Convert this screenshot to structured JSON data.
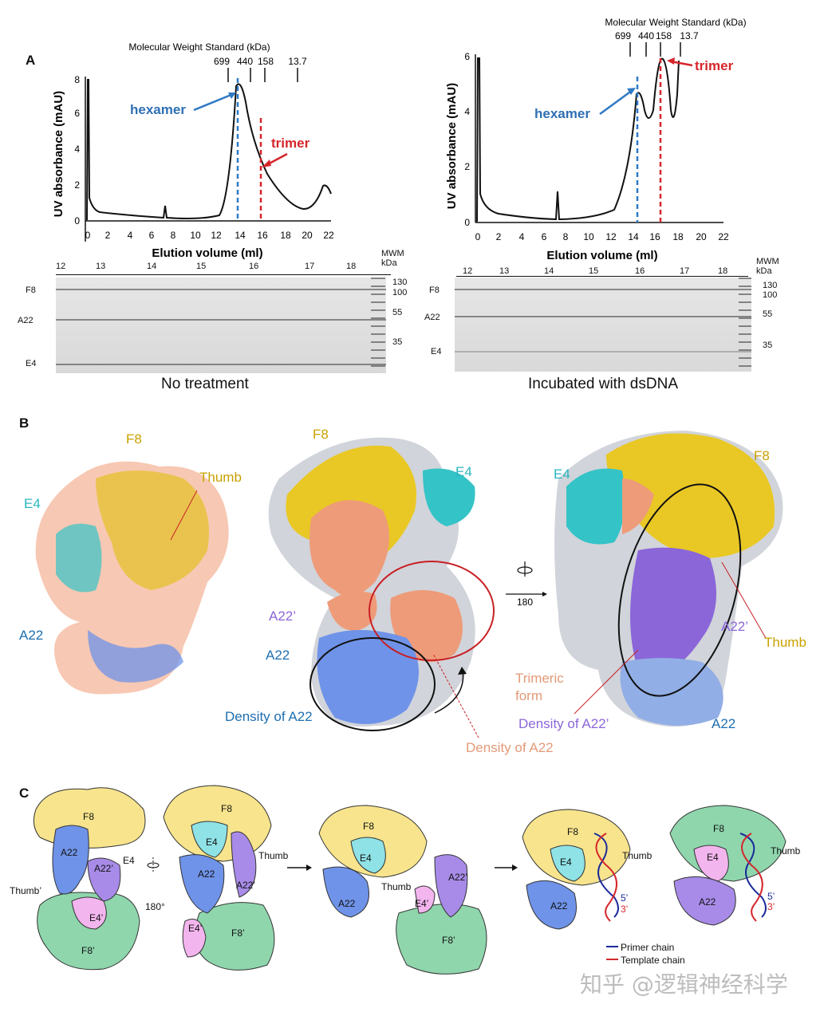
{
  "panelA": {
    "letter": "A",
    "left": {
      "mws_title": "Molecular Weight Standard (kDa)",
      "mws_values": [
        "699",
        "440",
        "158",
        "13.7"
      ],
      "ylabel": "UV absorbance (mAU)",
      "xlabel": "Elution volume (ml)",
      "yticks": [
        "0",
        "2",
        "4",
        "6",
        "8"
      ],
      "xticks": [
        "0",
        "2",
        "4",
        "6",
        "8",
        "10",
        "12",
        "14",
        "16",
        "18",
        "20",
        "22"
      ],
      "hexamer": "hexamer",
      "trimer": "trimer",
      "gel_lanes": [
        "12",
        "13",
        "14",
        "15",
        "16",
        "17",
        "18"
      ],
      "gel_bands": [
        "F8",
        "A22",
        "E4"
      ],
      "mwm_title": "MWM",
      "mwm_unit": "kDa",
      "mwm_values": [
        "130",
        "100",
        "55",
        "35"
      ],
      "caption": "No treatment"
    },
    "right": {
      "mws_title": "Molecular Weight Standard (kDa)",
      "mws_values": [
        "699",
        "440",
        "158",
        "13.7"
      ],
      "ylabel": "UV absorbance (mAU)",
      "xlabel": "Elution volume (ml)",
      "yticks": [
        "0",
        "2",
        "4",
        "6"
      ],
      "xticks": [
        "0",
        "2",
        "4",
        "6",
        "8",
        "10",
        "12",
        "14",
        "16",
        "18",
        "20",
        "22"
      ],
      "hexamer": "hexamer",
      "trimer": "trimer",
      "gel_lanes": [
        "12",
        "13",
        "14",
        "15",
        "16",
        "17",
        "18"
      ],
      "gel_bands": [
        "F8",
        "A22",
        "E4"
      ],
      "mwm_title": "MWM",
      "mwm_unit": "kDa",
      "mwm_values": [
        "130",
        "100",
        "55",
        "35"
      ],
      "caption": "Incubated with dsDNA"
    }
  },
  "panelB": {
    "letter": "B",
    "labels": {
      "f8_a": "F8",
      "thumb_a": "Thumb",
      "e4_a": "E4",
      "a22_a": "A22",
      "f8_b": "F8",
      "e4_b": "E4",
      "a22p_b": "A22’",
      "a22_b": "A22",
      "density_a22_b": "Density of A22",
      "density_a22_c": "Density of A22",
      "rot": "180",
      "trimeric": "Trimeric form",
      "e4_c": "E4",
      "f8_c": "F8",
      "a22p_c": "A22’",
      "thumb_c": "Thumb",
      "density_a22p_c": "Density of A22’",
      "a22_c": "A22"
    }
  },
  "panelC": {
    "letter": "C",
    "labels": {
      "f8": "F8",
      "a22": "A22",
      "e4": "E4",
      "a22p": "A22’",
      "thumbp": "Thumb’",
      "e4p": "E4’",
      "f8p": "F8’",
      "rot": "180°",
      "thumb": "Thumb",
      "five": "5’",
      "three": "3’"
    },
    "legend": {
      "primer": "Primer chain",
      "template": "Template chain"
    },
    "colors": {
      "f8": "#f7e48d",
      "a22": "#6f93e8",
      "e4": "#8fe2e6",
      "a22p": "#a88be8",
      "e4p": "#f3b5ee",
      "f8p": "#8fd6ad",
      "primer": "#1a2a9a",
      "template": "#d6262b"
    }
  },
  "watermark": "知乎 @逻辑神经科学"
}
